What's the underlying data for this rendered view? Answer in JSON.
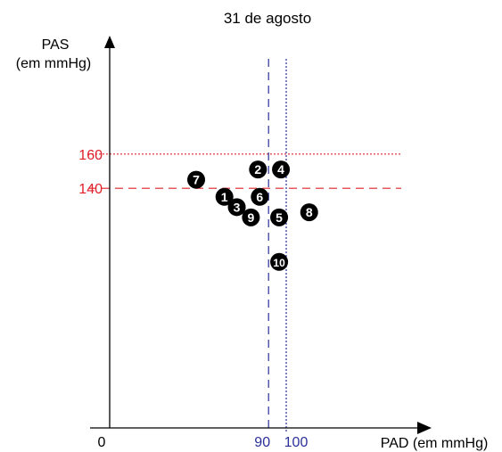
{
  "chart_data": {
    "type": "scatter",
    "title": "31 de agosto",
    "xlabel": "PAD (em mmHg)",
    "ylabel_line1": "PAS",
    "ylabel_line2": "(em mmHg)",
    "origin_label": "0",
    "xlim": [
      0,
      190
    ],
    "ylim": [
      0,
      230
    ],
    "grid": false,
    "reference_lines": {
      "horizontal": [
        {
          "value": 160,
          "label": "160",
          "style": "dotted",
          "color": "#e0202a"
        },
        {
          "value": 140,
          "label": "140",
          "style": "dashed",
          "color": "#e0202a"
        }
      ],
      "vertical": [
        {
          "value": 90,
          "label": "90",
          "style": "dashed",
          "color": "#2a2f9a"
        },
        {
          "value": 100,
          "label": "100",
          "style": "dotted",
          "color": "#2a2f9a"
        }
      ]
    },
    "points": [
      {
        "label": "1",
        "x": 65,
        "y": 135
      },
      {
        "label": "2",
        "x": 84,
        "y": 151
      },
      {
        "label": "3",
        "x": 72,
        "y": 129
      },
      {
        "label": "4",
        "x": 97,
        "y": 151
      },
      {
        "label": "5",
        "x": 96,
        "y": 123
      },
      {
        "label": "6",
        "x": 85,
        "y": 135
      },
      {
        "label": "7",
        "x": 49,
        "y": 145
      },
      {
        "label": "8",
        "x": 113,
        "y": 126
      },
      {
        "label": "9",
        "x": 80,
        "y": 123
      },
      {
        "label": "10",
        "x": 96,
        "y": 97
      }
    ]
  },
  "colors": {
    "axis": "#000000",
    "marker_fill": "#000000",
    "marker_text": "#ffffff",
    "red": "#e0202a",
    "blue": "#2a2f9a"
  }
}
